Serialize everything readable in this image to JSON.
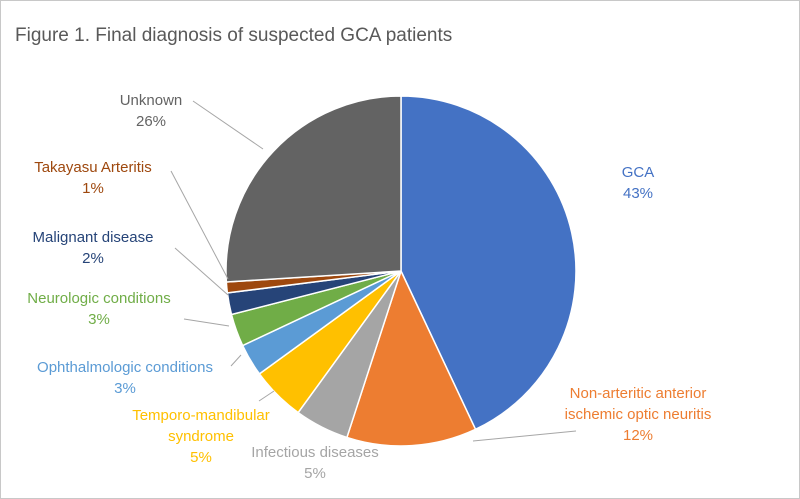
{
  "chart_data": {
    "type": "pie",
    "title": "Figure 1. Final diagnosis of suspected GCA patients",
    "slices": [
      {
        "name": "GCA",
        "value": 43,
        "pct_label": "43%",
        "color": "#4472c4",
        "label_lines": [
          "GCA"
        ]
      },
      {
        "name": "Non-arteritic anterior ischemic optic neuritis",
        "value": 12,
        "pct_label": "12%",
        "color": "#ed7d31",
        "label_lines": [
          "Non-arteritic anterior",
          "ischemic optic neuritis"
        ]
      },
      {
        "name": "Infectious diseases",
        "value": 5,
        "pct_label": "5%",
        "color": "#a5a5a5",
        "label_lines": [
          "Infectious diseases"
        ]
      },
      {
        "name": "Temporo-mandibular syndrome",
        "value": 5,
        "pct_label": "5%",
        "color": "#ffc000",
        "label_lines": [
          "Temporo-mandibular",
          "syndrome"
        ]
      },
      {
        "name": "Ophthalmologic conditions",
        "value": 3,
        "pct_label": "3%",
        "color": "#5b9bd5",
        "label_lines": [
          "Ophthalmologic conditions"
        ]
      },
      {
        "name": "Neurologic conditions",
        "value": 3,
        "pct_label": "3%",
        "color": "#70ad47",
        "label_lines": [
          "Neurologic conditions"
        ]
      },
      {
        "name": "Malignant disease",
        "value": 2,
        "pct_label": "2%",
        "color": "#264478",
        "label_lines": [
          "Malignant disease"
        ]
      },
      {
        "name": "Takayasu Arteritis",
        "value": 1,
        "pct_label": "1%",
        "color": "#9e480e",
        "label_lines": [
          "Takayasu Arteritis"
        ]
      },
      {
        "name": "Unknown",
        "value": 26,
        "pct_label": "26%",
        "color": "#636363",
        "label_lines": [
          "Unknown"
        ]
      }
    ]
  }
}
